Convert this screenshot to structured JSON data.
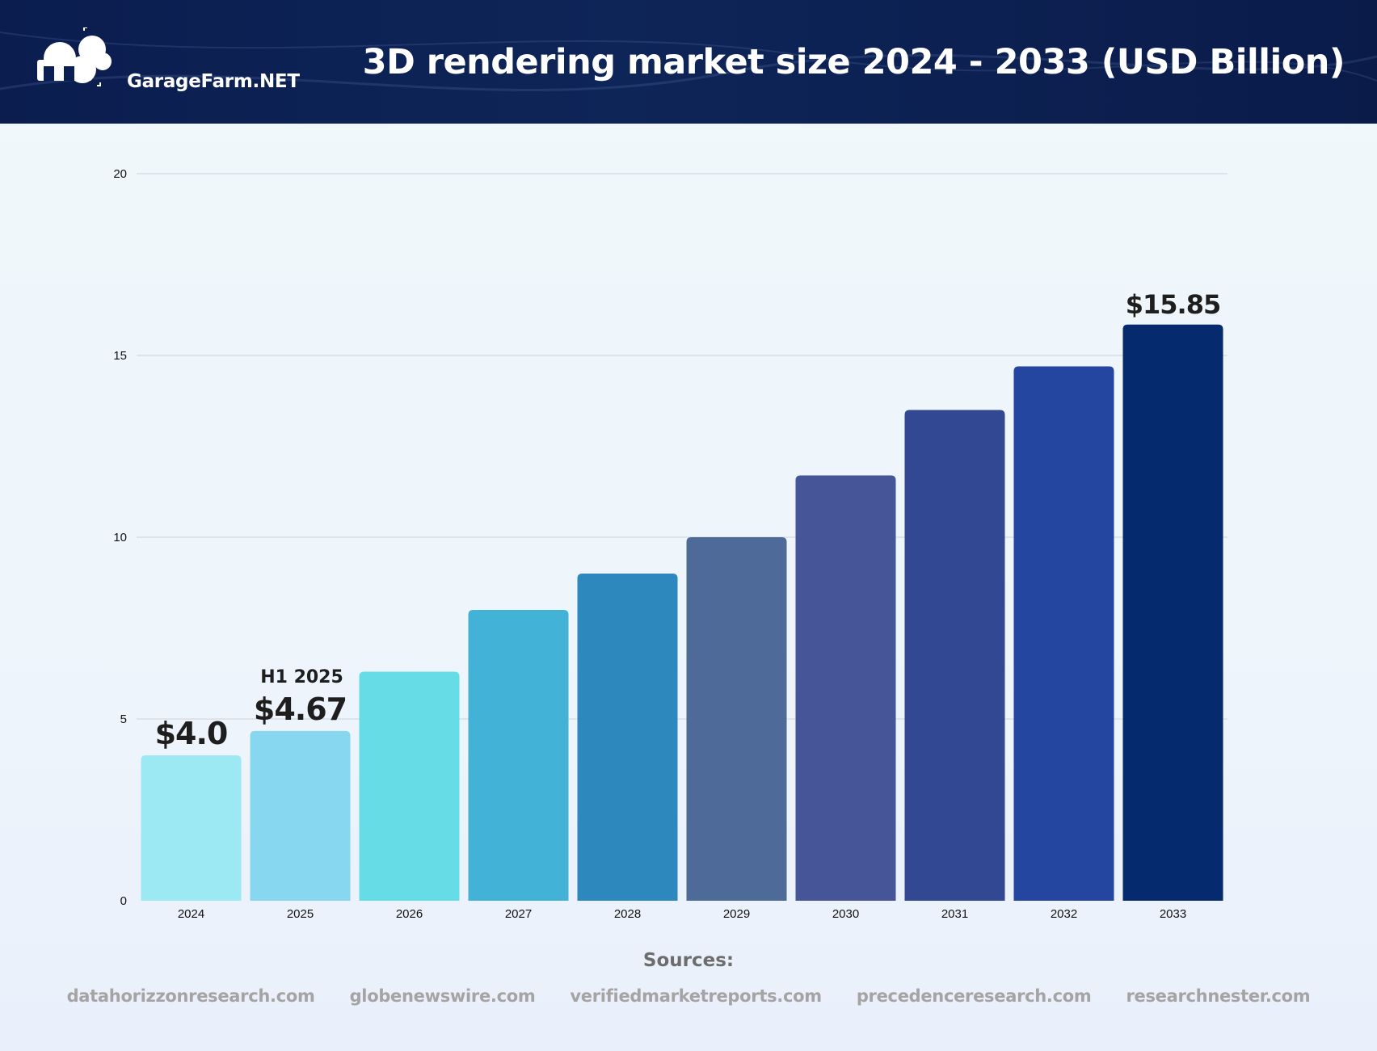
{
  "header": {
    "logo_text": "GarageFarm.NET",
    "title": "3D rendering market size 2024 - 2033 (USD Billion)"
  },
  "chart_data": {
    "type": "bar",
    "title": "3D rendering market size 2024 - 2033 (USD Billion)",
    "categories": [
      "2024",
      "2025",
      "2026",
      "2027",
      "2028",
      "2029",
      "2030",
      "2031",
      "2032",
      "2033"
    ],
    "values": [
      4.0,
      4.67,
      6.3,
      8.0,
      9.0,
      10.0,
      11.7,
      13.5,
      14.7,
      15.85
    ],
    "colors": [
      "#9ce9f3",
      "#88d7f1",
      "#66dde6",
      "#42b2d6",
      "#2d89bd",
      "#4d6a99",
      "#465597",
      "#324892",
      "#2445a0",
      "#062a6e"
    ],
    "ylim": [
      0,
      20
    ],
    "yticks": [
      0,
      5,
      10,
      15,
      20
    ],
    "grid": true,
    "data_labels": [
      {
        "category": "2024",
        "text": "$4.0"
      },
      {
        "category": "2025",
        "text": "$4.67",
        "note": "H1 2025"
      },
      {
        "category": "2033",
        "text": "$15.85"
      }
    ]
  },
  "sources": {
    "title": "Sources:",
    "items": [
      "datahorizzonresearch.com",
      "globenewswire.com",
      "verifiedmarketreports.com",
      "precedenceresearch.com",
      "researchnester.com"
    ]
  }
}
